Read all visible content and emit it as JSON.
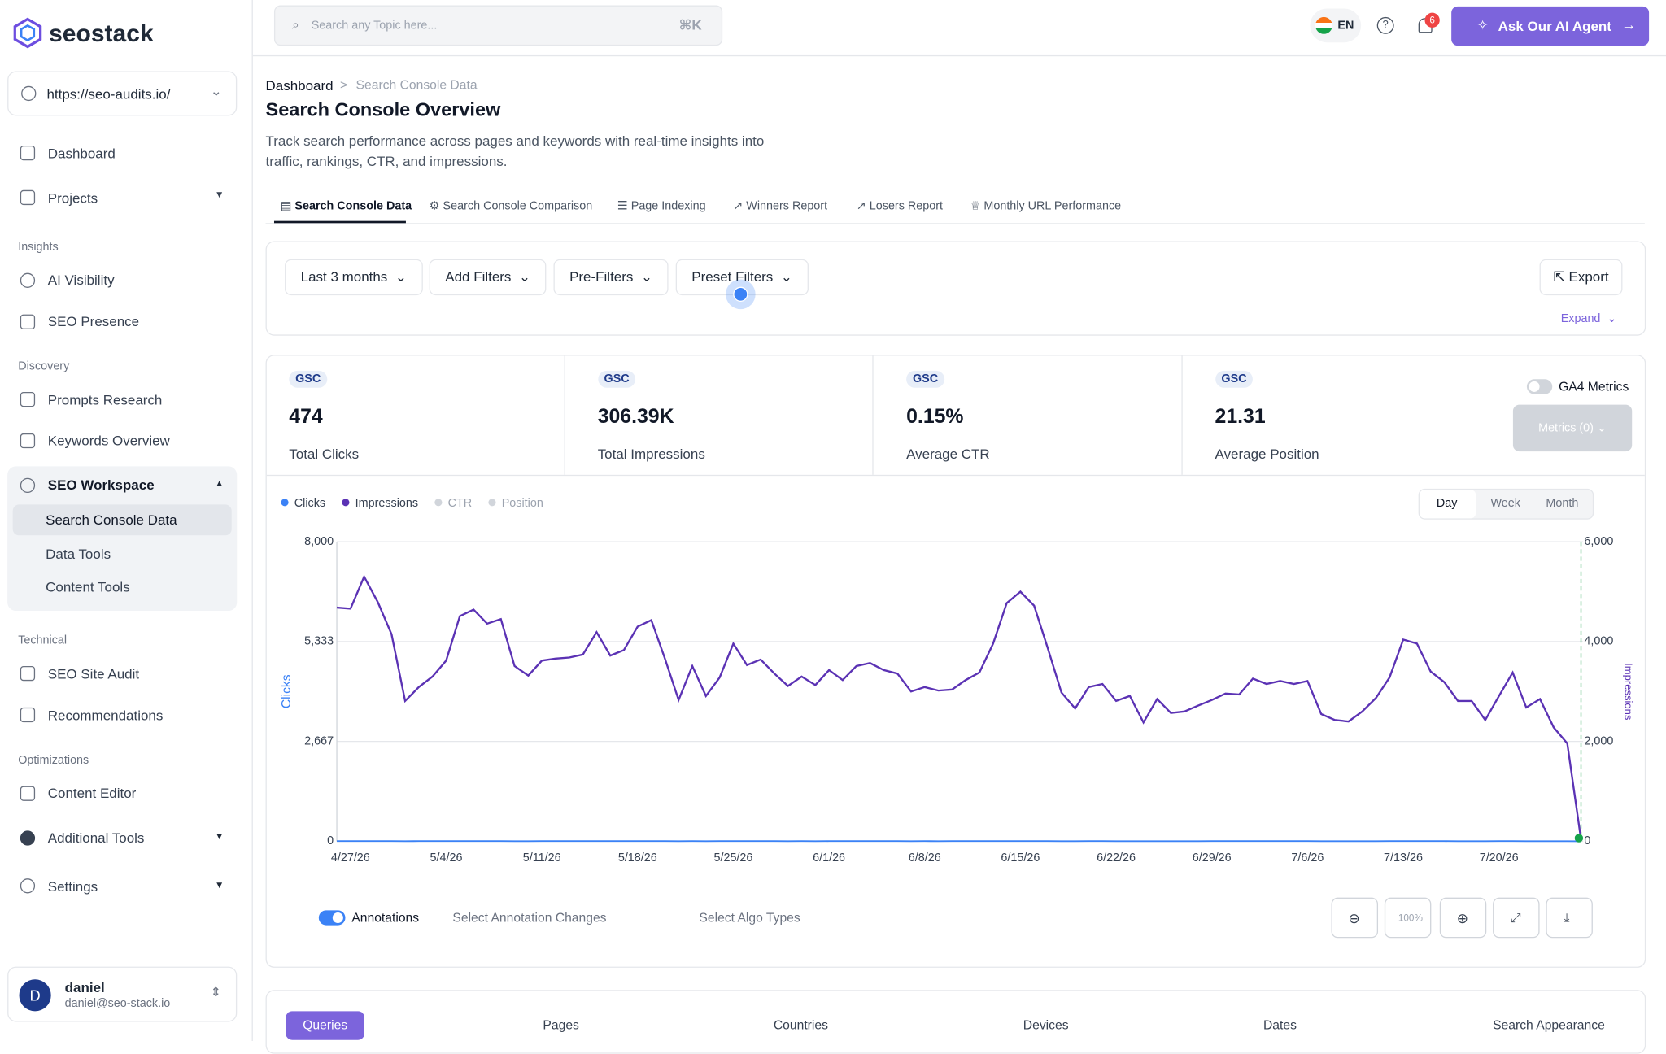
{
  "sidebar": {
    "brand": "seostack",
    "site": "https://seo-audits.io/",
    "nav": [
      "Dashboard",
      "Projects"
    ],
    "groups": [
      {
        "title": "Insights",
        "items": [
          "AI Visibility",
          "SEO Presence"
        ]
      },
      {
        "title": "Discovery",
        "items": [
          "Prompts Research",
          "Keywords Overview"
        ]
      }
    ],
    "workspace": {
      "title": "SEO Workspace",
      "items": [
        "Search Console Data",
        "Data Tools",
        "Content Tools"
      ]
    },
    "technical": {
      "title": "Technical",
      "items": [
        "SEO Site Audit",
        "Recommendations"
      ]
    },
    "optimizations": {
      "title": "Optimizations",
      "items": [
        "Content Editor",
        "Additional Tools",
        "Settings"
      ]
    },
    "user": {
      "initial": "D",
      "name": "daniel",
      "email": "daniel@seo-stack.io"
    }
  },
  "topbar": {
    "search": "Search any Topic here...",
    "shortcut": "⌘K",
    "lang": "EN",
    "notifications": 6,
    "agent": "Ask Our AI Agent"
  },
  "page": {
    "breadcrumb": [
      "Dashboard",
      "Search Console Data"
    ],
    "title": "Search Console Overview",
    "description": [
      "Track search performance across pages and keywords with real-time insights into",
      "traffic, rankings, CTR, and impressions."
    ],
    "tabs": [
      "Search Console Data",
      "Search Console Comparison",
      "Page Indexing",
      "Winners Report",
      "Losers Report",
      "Monthly URL Performance"
    ],
    "filters": [
      "Last 3 months",
      "Add Filters",
      "Pre-Filters",
      "Preset Filters"
    ],
    "export": "Export",
    "expand": "Expand",
    "metrics": [
      {
        "badge": "GSC",
        "value": 474,
        "label": "Total Clicks"
      },
      {
        "badge": "GSC",
        "value": "306.39K",
        "label": "Total Impressions"
      },
      {
        "badge": "GSC",
        "value": "0.15%",
        "label": "Average CTR"
      },
      {
        "badge": "GSC",
        "value": 21.31,
        "label": "Average Position"
      }
    ],
    "ga4": "GA4 Metrics",
    "metrics_button": "Metrics (0)",
    "granularity": [
      "Day",
      "Week",
      "Month"
    ],
    "annotations": "Annotations",
    "annotation_select": "Select Annotation Changes",
    "algo_select": "Select Algo Types",
    "zoom": "100%",
    "bottom_tabs": [
      "Queries",
      "Pages",
      "Countries",
      "Devices",
      "Dates",
      "Search Appearance"
    ]
  },
  "chart_data": {
    "type": "line",
    "ylabel": "Clicks",
    "y2label": "Impressions",
    "legend_inactive": [
      "CTR",
      "Position"
    ],
    "grid": true,
    "categories": [
      null,
      "4/27/26",
      null,
      null,
      null,
      null,
      null,
      null,
      "5/4/26",
      null,
      null,
      null,
      null,
      null,
      null,
      "5/11/26",
      null,
      null,
      null,
      null,
      null,
      null,
      "5/18/26",
      null,
      null,
      null,
      null,
      null,
      null,
      "5/25/26",
      null,
      null,
      null,
      null,
      null,
      null,
      "6/1/26",
      null,
      null,
      null,
      null,
      null,
      null,
      "6/8/26",
      null,
      null,
      null,
      null,
      null,
      null,
      "6/15/26",
      null,
      null,
      null,
      null,
      null,
      null,
      "6/22/26",
      null,
      null,
      null,
      null,
      null,
      null,
      "6/29/26",
      null,
      null,
      null,
      null,
      null,
      null,
      "7/6/26",
      null,
      null,
      null,
      null,
      null,
      null,
      "7/13/26",
      null,
      null,
      null,
      null,
      null,
      null,
      "7/20/26",
      null,
      null,
      null,
      null,
      null,
      null
    ],
    "ylim": [
      0,
      8000
    ],
    "yticks": [
      0,
      {
        "value": 2667,
        "label": "2,667"
      },
      {
        "value": 5333,
        "label": "5,333"
      },
      {
        "value": 8000,
        "label": "8,000"
      }
    ],
    "y2lim": [
      0,
      6000
    ],
    "y2ticks": [
      0,
      {
        "value": 2000,
        "label": "2,000"
      },
      {
        "value": 4000,
        "label": "4,000"
      },
      {
        "value": 6000,
        "label": "6,000"
      }
    ],
    "series": [
      {
        "name": "Clicks",
        "color": "#3b82f6",
        "values": [
          5,
          5,
          6,
          5,
          5,
          4,
          5,
          5,
          5,
          6,
          6,
          5,
          5,
          4,
          4,
          5,
          5,
          5,
          5,
          6,
          5,
          5,
          6,
          6,
          5,
          4,
          5,
          4,
          5,
          5,
          5,
          5,
          5,
          4,
          5,
          4,
          5,
          5,
          5,
          5,
          5,
          5,
          4,
          5,
          4,
          5,
          5,
          5,
          5,
          6,
          7,
          6,
          5,
          4,
          4,
          5,
          5,
          4,
          4,
          4,
          4,
          4,
          4,
          4,
          5,
          5,
          5,
          5,
          5,
          5,
          5,
          5,
          4,
          4,
          4,
          4,
          4,
          5,
          6,
          6,
          5,
          5,
          4,
          4,
          4,
          5,
          5,
          4,
          4,
          4,
          3,
          0
        ]
      },
      {
        "name": "Impressions",
        "color": "#5b32b4",
        "axis": "y2",
        "values": [
          4681,
          4660,
          5300,
          4790,
          4150,
          2810,
          3090,
          3300,
          3620,
          4510,
          4640,
          4360,
          4450,
          3510,
          3320,
          3620,
          3660,
          3680,
          3740,
          4190,
          3720,
          3830,
          4300,
          4430,
          3660,
          2830,
          3510,
          2910,
          3280,
          3960,
          3530,
          3640,
          3360,
          3110,
          3300,
          3130,
          3430,
          3230,
          3510,
          3570,
          3430,
          3360,
          3000,
          3090,
          3020,
          3040,
          3230,
          3380,
          3960,
          4770,
          5000,
          4720,
          3870,
          2980,
          2660,
          3090,
          3150,
          2810,
          2910,
          2380,
          2850,
          2570,
          2600,
          2720,
          2830,
          2960,
          2940,
          3260,
          3150,
          3210,
          3150,
          3210,
          2550,
          2430,
          2400,
          2600,
          2870,
          3280,
          4040,
          3960,
          3400,
          3190,
          2810,
          2810,
          2430,
          2910,
          3380,
          2680,
          2850,
          2280,
          1960,
          40
        ]
      }
    ]
  }
}
